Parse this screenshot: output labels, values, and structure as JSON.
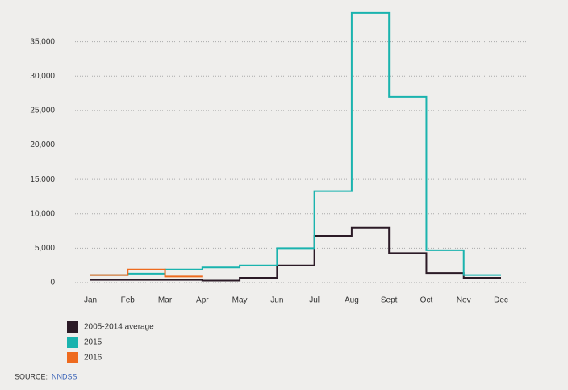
{
  "chart_data": {
    "type": "step",
    "categories": [
      "Jan",
      "Feb",
      "Mar",
      "Apr",
      "May",
      "Jun",
      "Jul",
      "Aug",
      "Sept",
      "Oct",
      "Nov",
      "Dec"
    ],
    "series": [
      {
        "name": "2005-2014 average",
        "color": "#2b1a26",
        "values": [
          400,
          400,
          400,
          300,
          700,
          2500,
          6800,
          8000,
          4300,
          1400,
          700,
          700
        ]
      },
      {
        "name": "2015",
        "color": "#1ab3ae",
        "values": [
          1100,
          1300,
          1900,
          2200,
          2500,
          5000,
          13300,
          39200,
          27000,
          4700,
          1100,
          1100
        ]
      },
      {
        "name": "2016",
        "color": "#ee6a1e",
        "values": [
          1100,
          1900,
          900,
          900,
          null,
          null,
          null,
          null,
          null,
          null,
          null,
          null
        ]
      }
    ],
    "ylim": [
      0,
      40000
    ],
    "yticks": [
      0,
      {
        "value": 5000,
        "label": "5,000"
      },
      {
        "value": 10000,
        "label": "10,000"
      },
      {
        "value": 15000,
        "label": "15,000"
      },
      {
        "value": 20000,
        "label": "20,000"
      },
      {
        "value": 25000,
        "label": "25,000"
      },
      {
        "value": 30000,
        "label": "30,000"
      },
      {
        "value": 35000,
        "label": "35,000"
      }
    ],
    "grid": true,
    "legend": "bottom-left",
    "source_label": "SOURCE:",
    "source": "NNDSS"
  }
}
